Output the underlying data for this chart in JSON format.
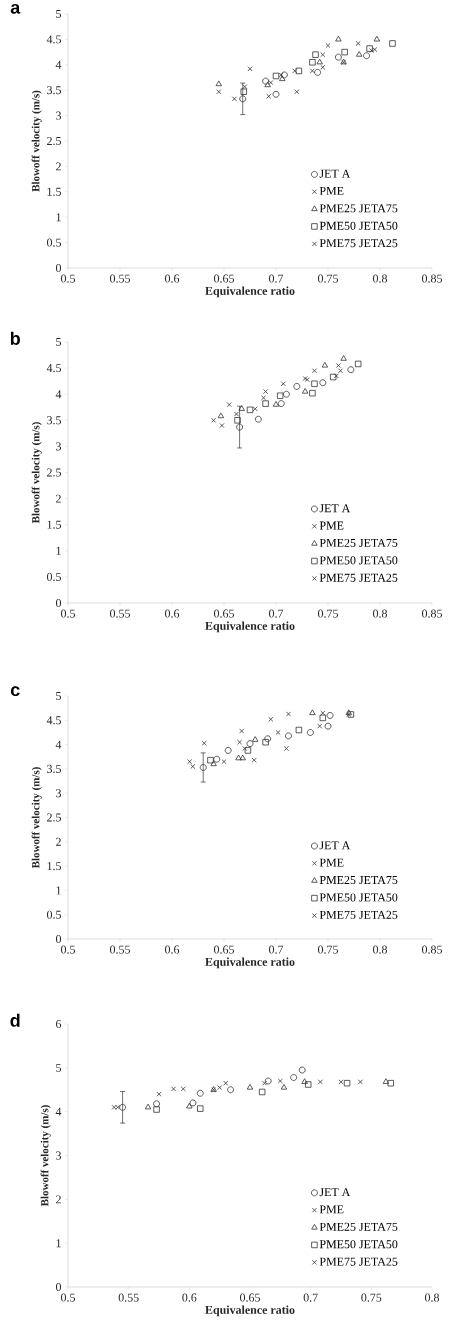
{
  "chart_data": [
    {
      "type": "scatter",
      "title": "a",
      "xlabel": "Equivalence ratio",
      "ylabel": "Blowoff velocity (m/s)",
      "xlim": [
        0.5,
        0.85
      ],
      "ylim": [
        0,
        5
      ],
      "xticks": [
        0.5,
        0.55,
        0.6,
        0.65,
        0.7,
        0.75,
        0.8,
        0.85
      ],
      "yticks": [
        0,
        0.5,
        1,
        1.5,
        2,
        2.5,
        3,
        3.5,
        4,
        4.5,
        5
      ],
      "legend": "right",
      "series": [
        {
          "name": "JET A",
          "color": "#333333",
          "marker": "circle",
          "x": [
            0.668,
            0.69,
            0.7,
            0.708,
            0.74,
            0.76,
            0.787
          ],
          "values": [
            3.33,
            3.68,
            3.42,
            3.8,
            3.85,
            4.15,
            4.18
          ],
          "errors": [
            0.31,
            null,
            null,
            null,
            null,
            null,
            null
          ]
        },
        {
          "name": "PME",
          "color": "#333333",
          "marker": "cross",
          "x": [
            0.645,
            0.66,
            0.675,
            0.693,
            0.695,
            0.72,
            0.745,
            0.765,
            0.792
          ],
          "values": [
            3.47,
            3.33,
            3.92,
            3.38,
            3.65,
            3.47,
            3.95,
            4.05,
            4.28
          ]
        },
        {
          "name": "PME25 JETA75",
          "color": "#333333",
          "marker": "triangle",
          "x": [
            0.645,
            0.692,
            0.706,
            0.742,
            0.76,
            0.765,
            0.78,
            0.797
          ],
          "values": [
            3.62,
            3.6,
            3.72,
            4.05,
            4.5,
            4.05,
            4.2,
            4.5
          ]
        },
        {
          "name": "PME50 JETA50",
          "color": "#333333",
          "marker": "square",
          "x": [
            0.669,
            0.7,
            0.722,
            0.735,
            0.738,
            0.766,
            0.79,
            0.812
          ],
          "values": [
            3.47,
            3.78,
            3.88,
            4.05,
            4.2,
            4.25,
            4.32,
            4.42
          ]
        },
        {
          "name": "PME75 JETA25",
          "color": "#333333",
          "marker": "cross",
          "x": [
            0.67,
            0.705,
            0.718,
            0.735,
            0.75,
            0.745,
            0.779,
            0.795
          ],
          "values": [
            3.57,
            3.8,
            3.88,
            3.88,
            4.38,
            4.2,
            4.42,
            4.3
          ]
        }
      ]
    },
    {
      "type": "scatter",
      "title": "b",
      "xlabel": "Equivalence ratio",
      "ylabel": "Blowoff velocity (m/s)",
      "xlim": [
        0.5,
        0.85
      ],
      "ylim": [
        0,
        5
      ],
      "xticks": [
        0.5,
        0.55,
        0.6,
        0.65,
        0.7,
        0.75,
        0.8,
        0.85
      ],
      "yticks": [
        0,
        0.5,
        1,
        1.5,
        2,
        2.5,
        3,
        3.5,
        4,
        4.5,
        5
      ],
      "legend": "right",
      "series": [
        {
          "name": "JET A",
          "color": "#333333",
          "marker": "circle",
          "x": [
            0.665,
            0.683,
            0.705,
            0.71,
            0.72,
            0.745,
            0.772
          ],
          "values": [
            3.37,
            3.52,
            3.82,
            4.0,
            4.15,
            4.22,
            4.47
          ],
          "errors": [
            0.4,
            null,
            null,
            null,
            null,
            null,
            null
          ]
        },
        {
          "name": "PME",
          "color": "#333333",
          "marker": "cross",
          "x": [
            0.648,
            0.655,
            0.662,
            0.69,
            0.73,
            0.758,
            0.762
          ],
          "values": [
            3.4,
            3.8,
            3.62,
            4.05,
            4.28,
            4.35,
            4.45
          ]
        },
        {
          "name": "PME25 JETA75",
          "color": "#333333",
          "marker": "triangle",
          "x": [
            0.647,
            0.667,
            0.7,
            0.728,
            0.747,
            0.765
          ],
          "values": [
            3.58,
            3.72,
            3.8,
            4.05,
            4.55,
            4.68
          ]
        },
        {
          "name": "PME50 JETA50",
          "color": "#333333",
          "marker": "square",
          "x": [
            0.663,
            0.675,
            0.69,
            0.704,
            0.735,
            0.737,
            0.755,
            0.779
          ],
          "values": [
            3.5,
            3.7,
            3.82,
            3.97,
            4.02,
            4.2,
            4.33,
            4.58
          ]
        },
        {
          "name": "PME75 JETA25",
          "color": "#333333",
          "marker": "cross",
          "x": [
            0.64,
            0.68,
            0.688,
            0.707,
            0.728,
            0.737,
            0.76
          ],
          "values": [
            3.5,
            3.72,
            3.93,
            4.2,
            4.3,
            4.45,
            4.55
          ]
        }
      ]
    },
    {
      "type": "scatter",
      "title": "c",
      "xlabel": "Equivalence ratio",
      "ylabel": "Blowoff velocity (m/s)",
      "xlim": [
        0.5,
        0.85
      ],
      "ylim": [
        0,
        5
      ],
      "xticks": [
        0.5,
        0.55,
        0.6,
        0.65,
        0.7,
        0.75,
        0.8,
        0.85
      ],
      "yticks": [
        0,
        0.5,
        1,
        1.5,
        2,
        2.5,
        3,
        3.5,
        4,
        4.5,
        5
      ],
      "legend": "right",
      "series": [
        {
          "name": "JET A",
          "color": "#333333",
          "marker": "circle",
          "x": [
            0.63,
            0.643,
            0.654,
            0.675,
            0.692,
            0.712,
            0.733,
            0.75,
            0.752
          ],
          "values": [
            3.53,
            3.7,
            3.88,
            4.02,
            4.12,
            4.18,
            4.25,
            4.38,
            4.6
          ],
          "errors": [
            0.3,
            null,
            null,
            null,
            null,
            null,
            null,
            null,
            null
          ]
        },
        {
          "name": "PME",
          "color": "#333333",
          "marker": "cross",
          "x": [
            0.62,
            0.67,
            0.679,
            0.71,
            0.742,
            0.77
          ],
          "values": [
            3.55,
            3.92,
            3.68,
            3.92,
            4.38,
            4.62
          ]
        },
        {
          "name": "PME25 JETA75",
          "color": "#333333",
          "marker": "triangle",
          "x": [
            0.64,
            0.664,
            0.668,
            0.68,
            0.735,
            0.77
          ],
          "values": [
            3.6,
            3.72,
            3.72,
            4.1,
            4.65,
            4.65
          ]
        },
        {
          "name": "PME50 JETA50",
          "color": "#333333",
          "marker": "square",
          "x": [
            0.637,
            0.673,
            0.69,
            0.722,
            0.745,
            0.772
          ],
          "values": [
            3.68,
            3.88,
            4.05,
            4.3,
            4.55,
            4.62
          ]
        },
        {
          "name": "PME75 JETA25",
          "color": "#333333",
          "marker": "cross",
          "x": [
            0.617,
            0.631,
            0.65,
            0.667,
            0.665,
            0.695,
            0.712,
            0.702,
            0.745
          ],
          "values": [
            3.65,
            4.03,
            3.65,
            4.28,
            4.05,
            4.52,
            4.63,
            4.25,
            4.65
          ]
        }
      ]
    },
    {
      "type": "scatter",
      "title": "d",
      "xlabel": "Equivalence ratio",
      "ylabel": "Blowoff velocity (m/s)",
      "xlim": [
        0.5,
        0.8
      ],
      "ylim": [
        0,
        6
      ],
      "xticks": [
        0.5,
        0.55,
        0.6,
        0.65,
        0.7,
        0.75,
        0.8
      ],
      "yticks": [
        0,
        1,
        2,
        3,
        4,
        5,
        6
      ],
      "legend": "right",
      "series": [
        {
          "name": "JET A",
          "color": "#333333",
          "marker": "circle",
          "x": [
            0.545,
            0.573,
            0.603,
            0.609,
            0.634,
            0.665,
            0.686,
            0.693
          ],
          "values": [
            4.1,
            4.18,
            4.2,
            4.42,
            4.5,
            4.7,
            4.78,
            4.95
          ],
          "errors": [
            0.36,
            null,
            null,
            null,
            null,
            null,
            null,
            null
          ]
        },
        {
          "name": "PME",
          "color": "#333333",
          "marker": "cross",
          "x": [
            0.541,
            0.575,
            0.587,
            0.62,
            0.63,
            0.662,
            0.725
          ],
          "values": [
            4.1,
            4.4,
            4.52,
            4.5,
            4.65,
            4.65,
            4.68
          ]
        },
        {
          "name": "PME25 JETA75",
          "color": "#333333",
          "marker": "triangle",
          "x": [
            0.566,
            0.6,
            0.62,
            0.65,
            0.678,
            0.695,
            0.762
          ],
          "values": [
            4.1,
            4.12,
            4.5,
            4.55,
            4.55,
            4.68,
            4.68
          ]
        },
        {
          "name": "PME50 JETA50",
          "color": "#333333",
          "marker": "square",
          "x": [
            0.573,
            0.609,
            0.66,
            0.698,
            0.73,
            0.766
          ],
          "values": [
            4.05,
            4.07,
            4.45,
            4.62,
            4.65,
            4.65
          ]
        },
        {
          "name": "PME75 JETA25",
          "color": "#333333",
          "marker": "cross",
          "x": [
            0.538,
            0.595,
            0.625,
            0.675,
            0.708,
            0.741
          ],
          "values": [
            4.1,
            4.52,
            4.55,
            4.7,
            4.68,
            4.68
          ]
        }
      ]
    }
  ]
}
